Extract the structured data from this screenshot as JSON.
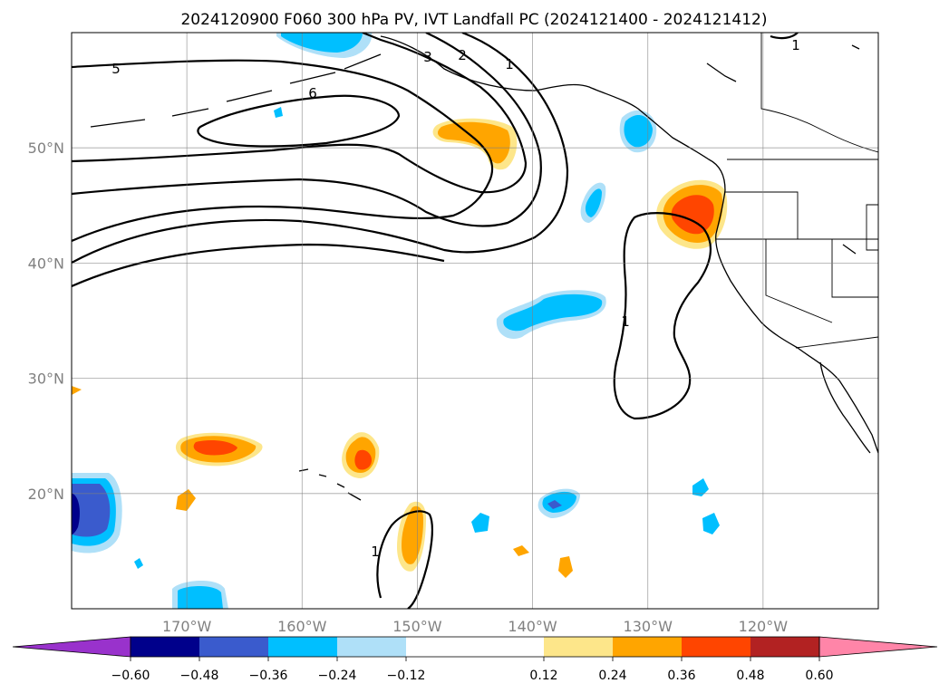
{
  "chart_data": {
    "type": "contour-map",
    "title": "2024120900 F060 300 hPa PV, IVT Landfall PC (2024121400 - 2024121412)",
    "lon_range": [
      -180,
      -110
    ],
    "lat_range": [
      10,
      60
    ],
    "x_ticks": [
      {
        "lon": -170,
        "label": "170°W"
      },
      {
        "lon": -160,
        "label": "160°W"
      },
      {
        "lon": -150,
        "label": "150°W"
      },
      {
        "lon": -140,
        "label": "140°W"
      },
      {
        "lon": -130,
        "label": "130°W"
      },
      {
        "lon": -120,
        "label": "120°W"
      }
    ],
    "y_ticks": [
      {
        "lat": 50,
        "label": "50°N"
      },
      {
        "lat": 40,
        "label": "40°N"
      },
      {
        "lat": 30,
        "label": "30°N"
      },
      {
        "lat": 20,
        "label": "20°N"
      }
    ],
    "grid": true,
    "colorbar": {
      "orientation": "horizontal",
      "extend": "both",
      "levels": [
        -0.6,
        -0.48,
        -0.36,
        -0.24,
        -0.12,
        0.12,
        0.24,
        0.36,
        0.48,
        0.6
      ],
      "tick_labels": [
        "−0.60",
        "−0.48",
        "−0.36",
        "−0.24",
        "−0.12",
        "0.12",
        "0.24",
        "0.36",
        "0.48",
        "0.60"
      ],
      "colors": [
        "#9932cc",
        "#00008b",
        "#3a5bcd",
        "#00bfff",
        "#afe0f8",
        "#ffffff",
        "#fde68a",
        "#ffa500",
        "#ff4500",
        "#b22222",
        "#ff85a8"
      ]
    },
    "pv_contour_labels": [
      "5",
      "6",
      "3",
      "2",
      "1",
      "1",
      "1",
      "1"
    ],
    "shaded_features": [
      {
        "lon": -145.5,
        "lat": 50.5,
        "value": 0.3
      },
      {
        "lon": -126.5,
        "lat": 44.5,
        "value": 0.4
      },
      {
        "lon": -167.5,
        "lat": 24.0,
        "value": 0.4
      },
      {
        "lon": -155.0,
        "lat": 22.5,
        "value": 0.4
      },
      {
        "lon": -150.5,
        "lat": 15.5,
        "value": 0.3
      },
      {
        "lon": -178.5,
        "lat": 18.5,
        "value": -0.55
      },
      {
        "lon": -130.5,
        "lat": 51.5,
        "value": -0.3
      },
      {
        "lon": -138.0,
        "lat": 36.5,
        "value": -0.3
      },
      {
        "lon": -137.5,
        "lat": 19.5,
        "value": -0.4
      },
      {
        "lon": -158.0,
        "lat": 59.0,
        "value": -0.3
      }
    ]
  }
}
